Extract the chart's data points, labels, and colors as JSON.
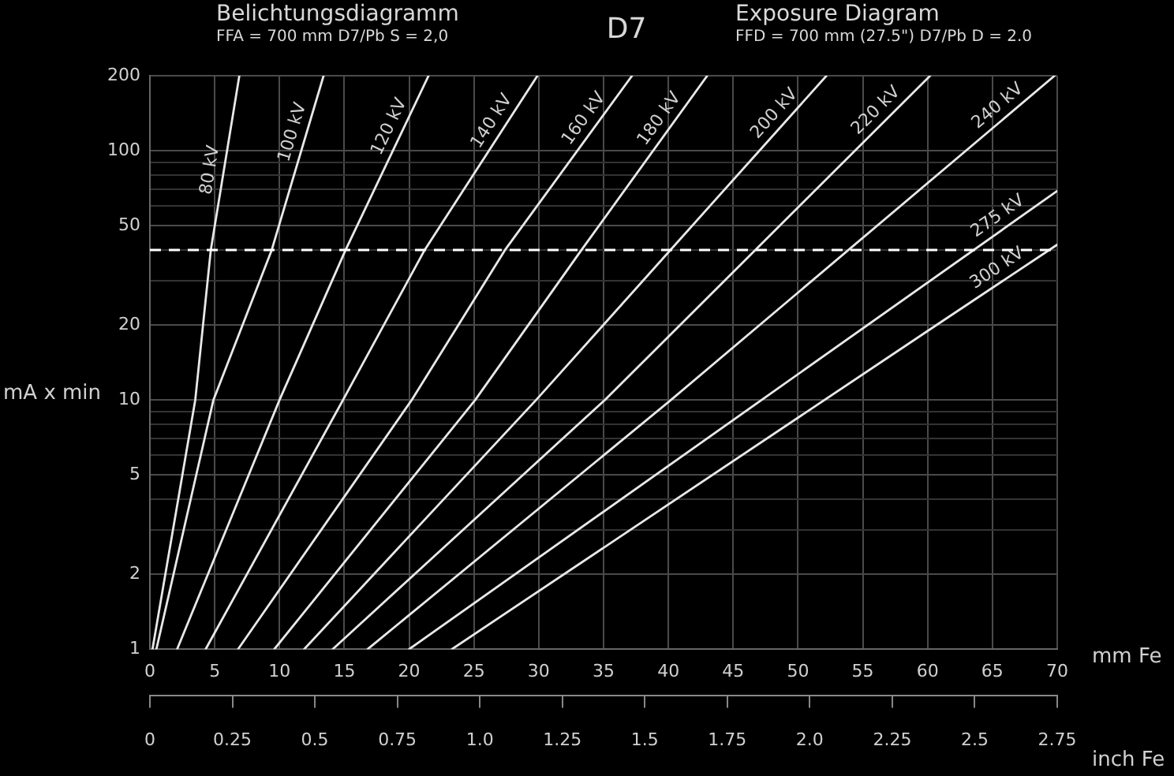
{
  "chart_data": {
    "type": "line",
    "title": "D7",
    "annotations": [
      "Belichtungsdiagramm",
      "FFA = 700 mm D7/Pb S = 2,0",
      "Exposure Diagram",
      "FFD = 700 mm (27.5\") D7/Pb D = 2.0"
    ],
    "xlabel": "mm Fe",
    "ylabel": "mA x min",
    "x2label": "inch Fe",
    "xlim": [
      0,
      70
    ],
    "xticks": [
      0,
      5,
      10,
      15,
      20,
      25,
      30,
      35,
      40,
      45,
      50,
      55,
      60,
      65,
      70
    ],
    "x2lim": [
      0,
      2.75
    ],
    "x2ticks": [
      {
        "value": 0,
        "label": "0"
      },
      0.25,
      0.5,
      0.75,
      {
        "value": 1,
        "label": "1.0"
      },
      1.25,
      1.5,
      1.75,
      {
        "value": 2,
        "label": "2.0"
      },
      2.25,
      2.5,
      2.75
    ],
    "ylim": [
      1,
      200
    ],
    "yticks": [
      1,
      2,
      {
        "value": 3,
        "label": null
      },
      {
        "value": 4,
        "label": null
      },
      5,
      {
        "value": 6,
        "label": null
      },
      {
        "value": 7,
        "label": null
      },
      {
        "value": 8,
        "label": null
      },
      {
        "value": 9,
        "label": null
      },
      10,
      20,
      {
        "value": 30,
        "label": null
      },
      {
        "value": 40,
        "label": null
      },
      50,
      {
        "value": 60,
        "label": null
      },
      {
        "value": 70,
        "label": null
      },
      {
        "value": 80,
        "label": null
      },
      {
        "value": 90,
        "label": null
      },
      100,
      200
    ],
    "log": "y",
    "grid": true,
    "legend": false,
    "marker": "none",
    "line_style": "solid",
    "ref_lines": [
      {
        "axis": "y",
        "value": 40,
        "color": "#ffffff",
        "line_style": "dashed"
      }
    ],
    "series": [
      {
        "name": "80 kV",
        "color": "#e8e8e8",
        "x": [
          0.2,
          3.5,
          4.7,
          6.9
        ],
        "values": [
          1,
          10,
          40,
          200
        ]
      },
      {
        "name": "100 kV",
        "color": "#e8e8e8",
        "x": [
          0.5,
          4.9,
          9.4,
          13.4
        ],
        "values": [
          1,
          10,
          40,
          200
        ]
      },
      {
        "name": "120 kV",
        "color": "#e8e8e8",
        "x": [
          2.1,
          10.0,
          15.1,
          21.5
        ],
        "values": [
          1,
          10,
          40,
          200
        ]
      },
      {
        "name": "140 kV",
        "color": "#e8e8e8",
        "x": [
          4.3,
          14.9,
          21.2,
          29.9
        ],
        "values": [
          1,
          10,
          40,
          200
        ]
      },
      {
        "name": "160 kV",
        "color": "#e8e8e8",
        "x": [
          6.8,
          20.2,
          27.4,
          37.2
        ],
        "values": [
          1,
          10,
          40,
          200
        ]
      },
      {
        "name": "180 kV",
        "color": "#e8e8e8",
        "x": [
          9.6,
          25.1,
          33.3,
          43.0
        ],
        "values": [
          1,
          10,
          40,
          200
        ]
      },
      {
        "name": "200 kV",
        "color": "#e8e8e8",
        "x": [
          11.9,
          29.8,
          52.2
        ],
        "values": [
          1,
          10,
          200
        ]
      },
      {
        "name": "220 kV",
        "color": "#e8e8e8",
        "x": [
          14.1,
          35.1,
          60.2
        ],
        "values": [
          1,
          10,
          200
        ]
      },
      {
        "name": "240 kV",
        "color": "#e8e8e8",
        "x": [
          16.8,
          40.2,
          69.8
        ],
        "values": [
          1,
          10,
          200
        ]
      },
      {
        "name": "275 kV",
        "color": "#e8e8e8",
        "x": [
          20.0,
          70
        ],
        "values": [
          1,
          69
        ]
      },
      {
        "name": "300 kV",
        "color": "#e8e8e8",
        "x": [
          23.3,
          60.7,
          70
        ],
        "values": [
          1,
          20,
          42
        ]
      }
    ]
  }
}
